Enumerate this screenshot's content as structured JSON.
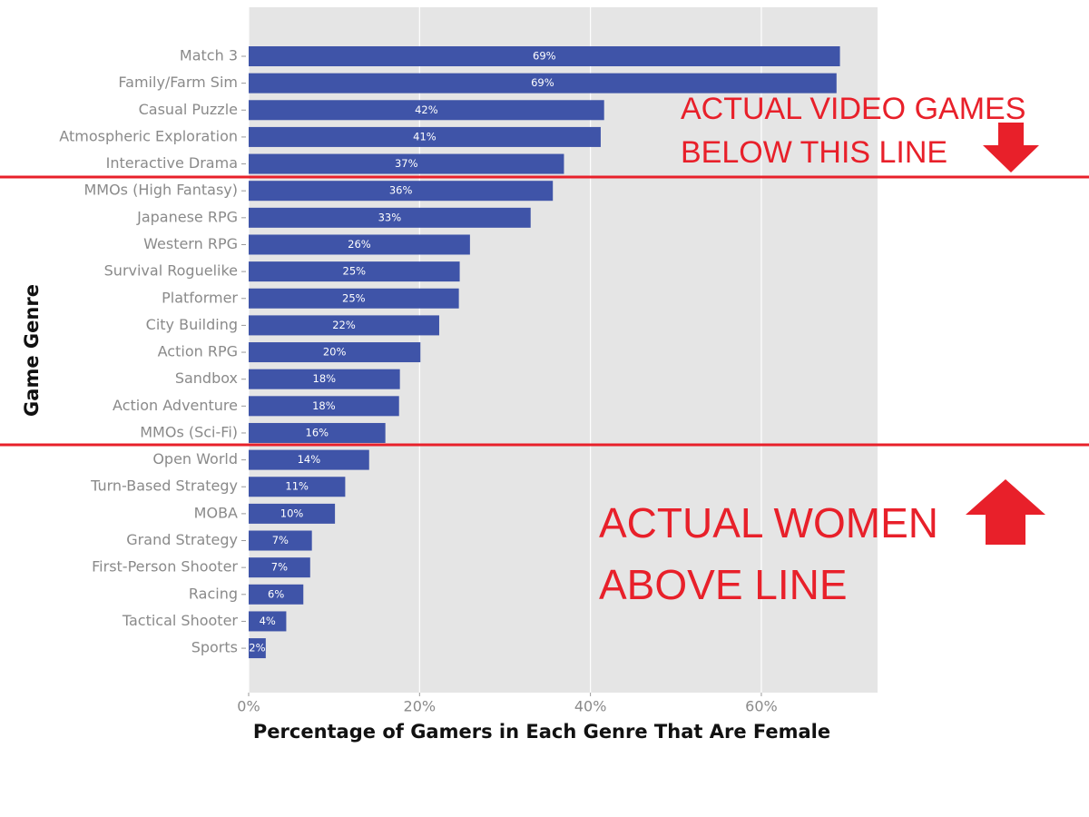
{
  "chart_data": {
    "type": "barh",
    "categories": [
      "Match 3",
      "Family/Farm Sim",
      "Casual Puzzle",
      "Atmospheric Exploration",
      "Interactive Drama",
      "MMOs (High Fantasy)",
      "Japanese RPG",
      "Western RPG",
      "Survival Roguelike",
      "Platformer",
      "City Building",
      "Action RPG",
      "Sandbox",
      "Action Adventure",
      "MMOs (Sci-Fi)",
      "Open World",
      "Turn-Based Strategy",
      "MOBA",
      "Grand Strategy",
      "First-Person Shooter",
      "Racing",
      "Tactical Shooter",
      "Sports"
    ],
    "values": [
      69.2,
      68.8,
      41.6,
      41.2,
      36.9,
      35.6,
      33.0,
      25.9,
      24.7,
      24.6,
      22.3,
      20.1,
      17.7,
      17.6,
      16.0,
      14.1,
      11.3,
      10.1,
      7.4,
      7.2,
      6.4,
      4.4,
      2.0
    ],
    "value_labels": [
      "69%",
      "69%",
      "42%",
      "41%",
      "37%",
      "36%",
      "33%",
      "26%",
      "25%",
      "25%",
      "22%",
      "20%",
      "18%",
      "18%",
      "16%",
      "14%",
      "11%",
      "10%",
      "7%",
      "7%",
      "6%",
      "4%",
      "2%"
    ],
    "color": "#3f54a8",
    "xlim": [
      0,
      73.6
    ],
    "xticks": [
      {
        "value": 0,
        "label": "0%"
      },
      {
        "value": 20,
        "label": "20%"
      },
      {
        "value": 40,
        "label": "40%"
      },
      {
        "value": 60,
        "label": "60%"
      }
    ],
    "grid": true,
    "x_label": "Percentage of Gamers in Each Genre That Are Female",
    "y_label": "Game Genre",
    "annotations": [
      "ACTUAL VIDEO GAMES",
      "BELOW THIS LINE",
      "ACTUAL WOMEN",
      "ABOVE LINE"
    ]
  }
}
